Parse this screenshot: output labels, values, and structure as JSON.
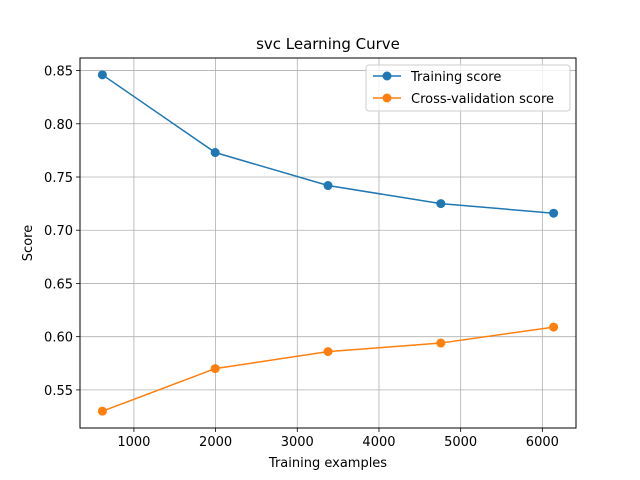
{
  "chart_data": {
    "type": "line",
    "title": "svc Learning Curve",
    "xlabel": "Training examples",
    "ylabel": "Score",
    "x": [
      614,
      1995,
      3376,
      4757,
      6138
    ],
    "series": [
      {
        "name": "Training score",
        "values": [
          0.846,
          0.773,
          0.742,
          0.725,
          0.716
        ],
        "color": "#1f77b4"
      },
      {
        "name": "Cross-validation score",
        "values": [
          0.53,
          0.57,
          0.586,
          0.594,
          0.609
        ],
        "color": "#ff7f0e"
      }
    ],
    "xlim": [
      340,
      6412
    ],
    "ylim": [
      0.5142,
      0.8618
    ],
    "xticks": [
      1000,
      2000,
      3000,
      4000,
      5000,
      6000
    ],
    "xtick_labels": [
      "1000",
      "2000",
      "3000",
      "4000",
      "5000",
      "6000"
    ],
    "yticks": [
      0.55,
      0.6,
      0.65,
      0.7,
      0.75,
      0.8,
      0.85
    ],
    "ytick_labels": [
      "0.55",
      "0.60",
      "0.65",
      "0.70",
      "0.75",
      "0.80",
      "0.85"
    ],
    "grid": true,
    "legend_position": "top-right",
    "marker": "circle"
  }
}
